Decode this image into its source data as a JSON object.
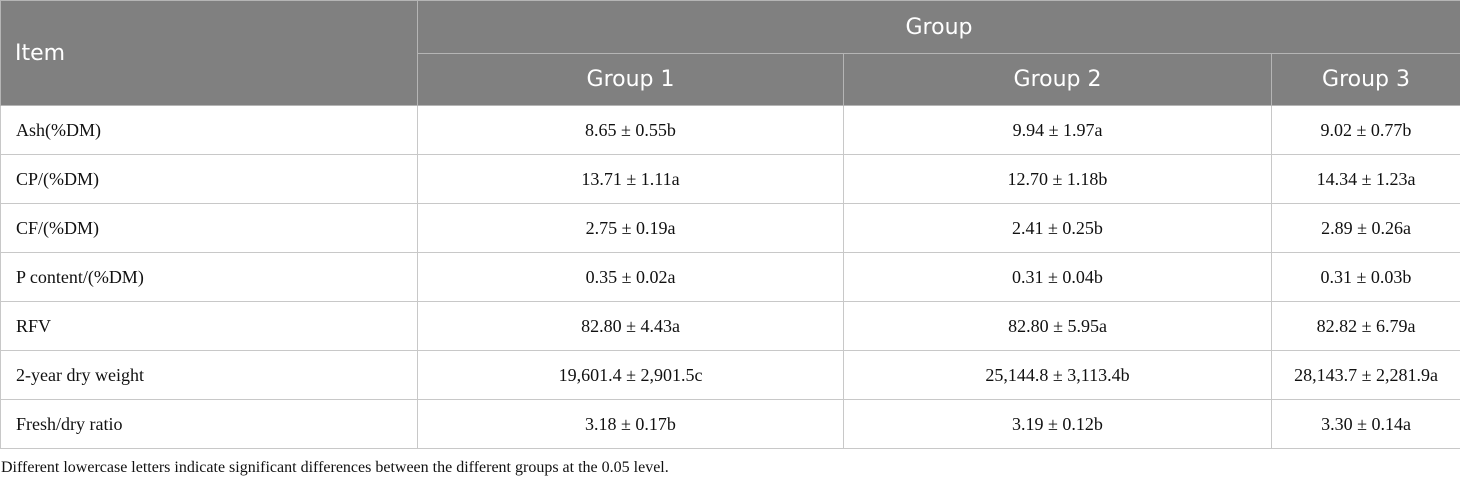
{
  "header": {
    "item": "Item",
    "group": "Group",
    "groups": [
      "Group 1",
      "Group 2",
      "Group 3"
    ]
  },
  "table": {
    "rows": [
      [
        "Ash(%DM)",
        "8.65 ± 0.55b",
        "9.94 ± 1.97a",
        "9.02 ± 0.77b"
      ],
      [
        "CP/(%DM)",
        "13.71 ± 1.11a",
        "12.70 ± 1.18b",
        "14.34 ± 1.23a"
      ],
      [
        "CF/(%DM)",
        "2.75 ± 0.19a",
        "2.41 ± 0.25b",
        "2.89 ± 0.26a"
      ],
      [
        "P content/(%DM)",
        "0.35 ± 0.02a",
        "0.31 ± 0.04b",
        "0.31 ± 0.03b"
      ],
      [
        "RFV",
        "82.80 ± 4.43a",
        "82.80 ± 5.95a",
        "82.82 ± 6.79a"
      ],
      [
        "2-year dry weight",
        "19,601.4 ± 2,901.5c",
        "25,144.8 ± 3,113.4b",
        "28,143.7 ± 2,281.9a"
      ],
      [
        "Fresh/dry ratio",
        "3.18 ± 0.17b",
        "3.19 ± 0.12b",
        "3.30 ± 0.14a"
      ]
    ]
  },
  "footnote": "Different lowercase letters indicate significant differences between the different groups at the 0.05 level."
}
